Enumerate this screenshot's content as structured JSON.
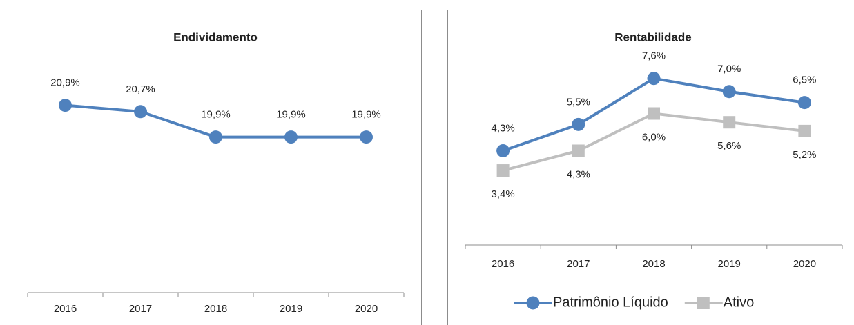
{
  "chart_data": [
    {
      "type": "line",
      "title": "Endividamento",
      "categories": [
        "2016",
        "2017",
        "2018",
        "2019",
        "2020"
      ],
      "series": [
        {
          "name": null,
          "color": "#4f81bd",
          "marker": "circle",
          "labels": "above",
          "values": [
            20.9,
            20.7,
            19.9,
            19.9,
            19.9
          ],
          "value_labels": [
            "20,9%",
            "20,7%",
            "19,9%",
            "19,9%",
            "19,9%"
          ]
        }
      ],
      "ylim": [
        15,
        22
      ],
      "legend": "none"
    },
    {
      "type": "line",
      "title": "Rentabilidade",
      "categories": [
        "2016",
        "2017",
        "2018",
        "2019",
        "2020"
      ],
      "series": [
        {
          "name": "Patrimônio Líquido",
          "color": "#4f81bd",
          "marker": "circle",
          "labels": "above",
          "values": [
            4.3,
            5.5,
            7.6,
            7.0,
            6.5
          ],
          "value_labels": [
            "4,3%",
            "5,5%",
            "7,6%",
            "7,0%",
            "6,5%"
          ]
        },
        {
          "name": "Ativo",
          "color": "#bfbfbf",
          "marker": "square",
          "labels": "below",
          "values": [
            3.4,
            4.3,
            6.0,
            5.6,
            5.2
          ],
          "value_labels": [
            "3,4%",
            "4,3%",
            "6,0%",
            "5,6%",
            "5,2%"
          ]
        }
      ],
      "ylim": [
        0,
        8
      ],
      "legend": "bottom"
    }
  ]
}
